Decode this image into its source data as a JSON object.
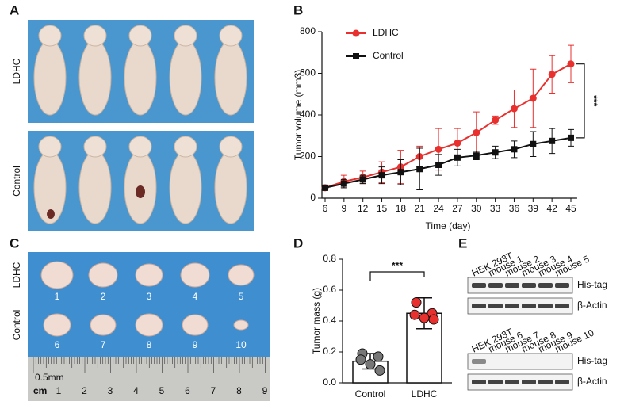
{
  "panels": [
    "A",
    "B",
    "C",
    "D",
    "E"
  ],
  "photo_a": {
    "rows": [
      "LDHC",
      "Control"
    ]
  },
  "photo_c": {
    "rows": [
      "LDHC",
      "Control"
    ],
    "tumors": [
      "1",
      "2",
      "3",
      "4",
      "5",
      "6",
      "7",
      "8",
      "9",
      "10"
    ],
    "ruler": {
      "unit": "cm",
      "marks": [
        "1",
        "2",
        "3",
        "4",
        "5",
        "6",
        "7",
        "8",
        "9"
      ],
      "note": "0.5mm"
    }
  },
  "blot": {
    "lanes_top": [
      "HEK 293T",
      "mouse 1",
      "mouse 2",
      "mouse 3",
      "mouse 4",
      "mouse 5"
    ],
    "lanes_bottom": [
      "HEK 293T",
      "mouse 6",
      "mouse 7",
      "mouse 8",
      "mouse 9",
      "mouse 10"
    ],
    "bands": [
      "His-tag",
      "β-Actin"
    ]
  },
  "chart_data": [
    {
      "type": "line",
      "xlabel": "Time (day)",
      "ylabel": "Tumor volume (mm3)",
      "x": [
        6,
        9,
        12,
        15,
        18,
        21,
        24,
        27,
        30,
        33,
        36,
        39,
        42,
        45
      ],
      "xticks": [
        6,
        9,
        12,
        15,
        18,
        21,
        24,
        27,
        30,
        33,
        36,
        39,
        42,
        45
      ],
      "xlim": [
        6,
        46
      ],
      "ylim": [
        0,
        800
      ],
      "yticks": [
        0,
        200,
        400,
        600,
        800
      ],
      "legend": "top-left",
      "annotation": "***",
      "series": [
        {
          "name": "LDHC",
          "color": "#e8312f",
          "marker": "circle",
          "values": [
            50,
            80,
            100,
            125,
            150,
            200,
            235,
            265,
            315,
            375,
            430,
            480,
            595,
            645
          ],
          "errors": [
            10,
            30,
            30,
            50,
            80,
            50,
            100,
            70,
            100,
            20,
            90,
            140,
            90,
            90
          ]
        },
        {
          "name": "Control",
          "color": "#111111",
          "marker": "square",
          "values": [
            50,
            70,
            90,
            110,
            125,
            140,
            160,
            195,
            205,
            220,
            235,
            260,
            275,
            290
          ],
          "errors": [
            10,
            20,
            20,
            40,
            60,
            100,
            50,
            40,
            20,
            30,
            40,
            60,
            60,
            40
          ]
        }
      ]
    },
    {
      "type": "bar",
      "ylabel": "Tumor mass (g)",
      "categories": [
        "Control",
        "LDHC"
      ],
      "values": [
        0.14,
        0.45
      ],
      "errors": [
        0.05,
        0.1
      ],
      "points": [
        [
          0.19,
          0.17,
          0.15,
          0.12,
          0.08
        ],
        [
          0.52,
          0.45,
          0.44,
          0.42,
          0.41
        ]
      ],
      "point_colors": [
        "#777777",
        "#e8312f"
      ],
      "ylim": [
        {
          "value": 0,
          "label": "0.0"
        },
        0.8
      ],
      "yticks": [
        {
          "value": 0,
          "label": "0.0"
        },
        0.2,
        0.4,
        0.6,
        0.8
      ],
      "annotation": "***"
    }
  ]
}
